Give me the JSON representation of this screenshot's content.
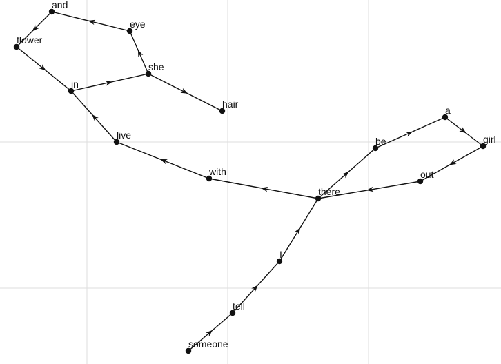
{
  "colors": {
    "background": "#ffffff",
    "grid": "#dddddd",
    "ink": "#111111"
  },
  "graph": {
    "nodes": [
      {
        "id": "and",
        "label": "and"
      },
      {
        "id": "flower",
        "label": "flower"
      },
      {
        "id": "eye",
        "label": "eye"
      },
      {
        "id": "she",
        "label": "she"
      },
      {
        "id": "in",
        "label": "in"
      },
      {
        "id": "hair",
        "label": "hair"
      },
      {
        "id": "live",
        "label": "live"
      },
      {
        "id": "with",
        "label": "with"
      },
      {
        "id": "there",
        "label": "there"
      },
      {
        "id": "be",
        "label": "be"
      },
      {
        "id": "a",
        "label": "a"
      },
      {
        "id": "girl",
        "label": "girl"
      },
      {
        "id": "out",
        "label": "out"
      },
      {
        "id": "i",
        "label": "I"
      },
      {
        "id": "tell",
        "label": "tell"
      },
      {
        "id": "someone",
        "label": "someone"
      }
    ],
    "edges": [
      {
        "from": "someone",
        "to": "tell"
      },
      {
        "from": "tell",
        "to": "i"
      },
      {
        "from": "i",
        "to": "there"
      },
      {
        "from": "there",
        "to": "be"
      },
      {
        "from": "be",
        "to": "a"
      },
      {
        "from": "a",
        "to": "girl"
      },
      {
        "from": "girl",
        "to": "out"
      },
      {
        "from": "out",
        "to": "there"
      },
      {
        "from": "there",
        "to": "with"
      },
      {
        "from": "with",
        "to": "live"
      },
      {
        "from": "live",
        "to": "in"
      },
      {
        "from": "in",
        "to": "she"
      },
      {
        "from": "she",
        "to": "eye"
      },
      {
        "from": "eye",
        "to": "and"
      },
      {
        "from": "and",
        "to": "flower"
      },
      {
        "from": "flower",
        "to": "in"
      },
      {
        "from": "she",
        "to": "hair"
      }
    ]
  }
}
